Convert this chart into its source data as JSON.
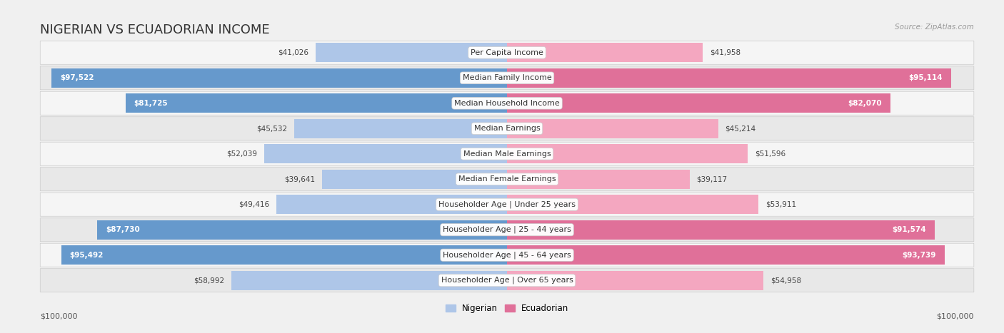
{
  "title": "NIGERIAN VS ECUADORIAN INCOME",
  "source": "Source: ZipAtlas.com",
  "categories": [
    "Per Capita Income",
    "Median Family Income",
    "Median Household Income",
    "Median Earnings",
    "Median Male Earnings",
    "Median Female Earnings",
    "Householder Age | Under 25 years",
    "Householder Age | 25 - 44 years",
    "Householder Age | 45 - 64 years",
    "Householder Age | Over 65 years"
  ],
  "nigerian": [
    41026,
    97522,
    81725,
    45532,
    52039,
    39641,
    49416,
    87730,
    95492,
    58992
  ],
  "ecuadorian": [
    41958,
    95114,
    82070,
    45214,
    51596,
    39117,
    53911,
    91574,
    93739,
    54958
  ],
  "max_value": 100000,
  "nigerian_color": "#aec6e8",
  "nigerian_color_dark": "#6699cc",
  "ecuadorian_color": "#f4a7c0",
  "ecuadorian_color_dark": "#e07099",
  "nigerian_label": "Nigerian",
  "ecuadorian_label": "Ecuadorian",
  "bg_color": "#f0f0f0",
  "row_bg_even": "#f5f5f5",
  "row_bg_odd": "#e8e8e8",
  "title_fontsize": 13,
  "label_fontsize": 8,
  "value_fontsize": 7.5,
  "xlabel_left": "$100,000",
  "xlabel_right": "$100,000",
  "large_threshold": 75000
}
